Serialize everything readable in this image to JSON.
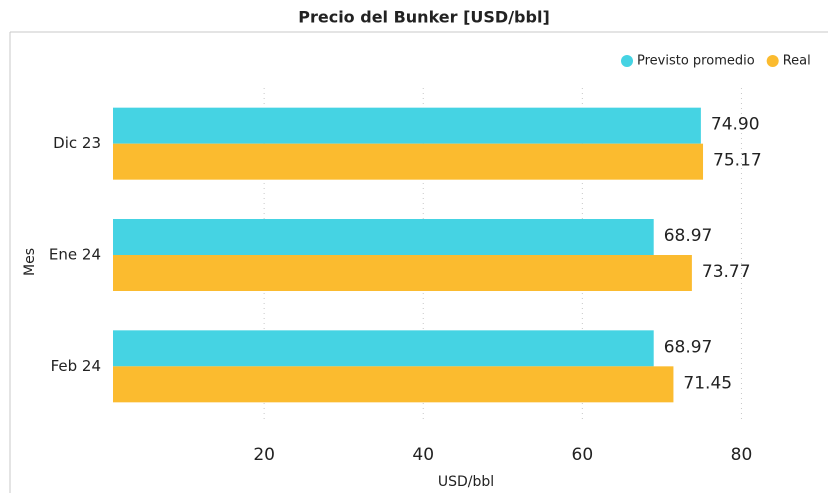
{
  "chart_data": {
    "type": "hbar",
    "title": "Precio del Bunker [USD/bbl]",
    "categories": [
      "Dic 23",
      "Ene 24",
      "Feb 24"
    ],
    "series": [
      {
        "name": "Previsto promedio",
        "color": "#45d3e3",
        "values": [
          74.9,
          68.97,
          68.97
        ],
        "value_labels": [
          "74.90",
          "68.97",
          "68.97"
        ]
      },
      {
        "name": "Real",
        "color": "#fbbb2f",
        "values": [
          75.17,
          73.77,
          71.45
        ],
        "value_labels": [
          "75.17",
          "73.77",
          "71.45"
        ]
      }
    ],
    "xlabel": "USD/bbl",
    "ylabel": "Mes",
    "xlim": [
      1,
      90
    ],
    "xticks": [
      20,
      40,
      60,
      80
    ],
    "grid": true,
    "legend": "top-right"
  }
}
